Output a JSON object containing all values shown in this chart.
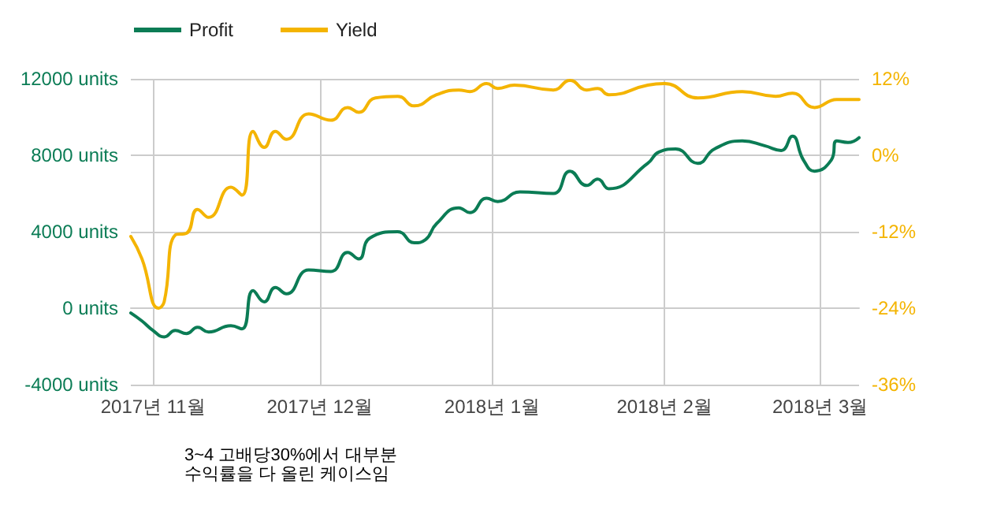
{
  "chart_data": {
    "type": "line",
    "legend": "top left",
    "grid": true,
    "marker": "none",
    "line_style": "solid",
    "xlim": [
      "2017-10-28",
      "2018-03-08"
    ],
    "xticks": [
      {
        "value": "2017-11-01",
        "label": "2017년 11월"
      },
      {
        "value": "2017-12-01",
        "label": "2017년 12월"
      },
      {
        "value": "2018-01-01",
        "label": "2018년 1월"
      },
      {
        "value": "2018-02-01",
        "label": "2018년 2월"
      },
      {
        "value": "2018-03-01",
        "label": "2018년 3월"
      }
    ],
    "ylim": [
      -4000,
      12000
    ],
    "yticks": [
      {
        "value": -4000,
        "label": "-4000 units"
      },
      {
        "value": 0,
        "label": "0 units"
      },
      {
        "value": 4000,
        "label": "4000 units"
      },
      {
        "value": 8000,
        "label": "8000 units"
      },
      {
        "value": 12000,
        "label": "12000 units"
      }
    ],
    "y2lim": [
      -36,
      12
    ],
    "y2ticks": [
      {
        "value": -36,
        "label": "-36%"
      },
      {
        "value": -24,
        "label": "-24%"
      },
      {
        "value": -12,
        "label": "-12%"
      },
      {
        "value": 0,
        "label": "0%"
      },
      {
        "value": 12,
        "label": "12%"
      }
    ],
    "annotations": [
      "3~4 고배당30%에서 대부분\n수익률을 다 올린 케이스임"
    ],
    "series": [
      {
        "name": "Profit",
        "color": "#0b7c55",
        "x": [
          "2017-10-28",
          "2017-10-30",
          "2017-11-01",
          "2017-11-03",
          "2017-11-05",
          "2017-11-07",
          "2017-11-09",
          "2017-11-11",
          "2017-11-15",
          "2017-11-17",
          "2017-11-19",
          "2017-11-21",
          "2017-11-23",
          "2017-11-25",
          "2017-11-29",
          "2017-12-03",
          "2017-12-06",
          "2017-12-08",
          "2017-12-10",
          "2017-12-15",
          "2017-12-18",
          "2017-12-20",
          "2017-12-22",
          "2017-12-26",
          "2017-12-28",
          "2017-12-31",
          "2018-01-02",
          "2018-01-06",
          "2018-01-12",
          "2018-01-15",
          "2018-01-18",
          "2018-01-20",
          "2018-01-22",
          "2018-01-29",
          "2018-01-31",
          "2018-02-03",
          "2018-02-07",
          "2018-02-10",
          "2018-02-15",
          "2018-02-19",
          "2018-02-22",
          "2018-02-24",
          "2018-02-26",
          "2018-02-28",
          "2018-03-03",
          "2018-03-04",
          "2018-03-06",
          "2018-03-08"
        ],
        "values": [
          -250,
          -670,
          -1170,
          -1500,
          -1170,
          -1330,
          -1000,
          -1250,
          -920,
          -1080,
          920,
          330,
          1080,
          750,
          2000,
          1920,
          2920,
          2580,
          3670,
          4000,
          3420,
          3580,
          4420,
          5250,
          5000,
          5750,
          5580,
          6080,
          6000,
          7170,
          6420,
          6750,
          6250,
          7580,
          8170,
          8330,
          7580,
          8330,
          8750,
          8500,
          8250,
          9000,
          7750,
          7170,
          7750,
          8750,
          8670,
          8920
        ]
      },
      {
        "name": "Yield",
        "color": "#f4b400",
        "axis": "y2",
        "x": [
          "2017-10-28",
          "2017-10-30",
          "2017-11-02",
          "2017-11-03",
          "2017-11-05",
          "2017-11-07",
          "2017-11-09",
          "2017-11-11",
          "2017-11-15",
          "2017-11-17",
          "2017-11-19",
          "2017-11-21",
          "2017-11-23",
          "2017-11-25",
          "2017-11-29",
          "2017-12-03",
          "2017-12-06",
          "2017-12-08",
          "2017-12-11",
          "2017-12-15",
          "2017-12-18",
          "2017-12-22",
          "2017-12-26",
          "2017-12-28",
          "2017-12-31",
          "2018-01-02",
          "2018-01-05",
          "2018-01-12",
          "2018-01-15",
          "2018-01-18",
          "2018-01-20",
          "2018-01-22",
          "2018-01-29",
          "2018-02-01",
          "2018-02-07",
          "2018-02-15",
          "2018-02-21",
          "2018-02-24",
          "2018-02-28",
          "2018-03-04",
          "2018-03-08"
        ],
        "values": [
          -12.75,
          -16.25,
          -24,
          -23,
          -12.5,
          -12.25,
          -8.5,
          -9.75,
          -5,
          -6.25,
          3.75,
          1.25,
          3.75,
          2.5,
          6.5,
          5.5,
          7.5,
          6.75,
          9,
          9.25,
          7.75,
          9.5,
          10.25,
          10,
          11.25,
          10.5,
          11,
          10.25,
          11.75,
          10.25,
          10.5,
          9.5,
          11,
          11.25,
          9,
          10,
          9.25,
          9.75,
          7.5,
          8.75,
          8.75
        ]
      }
    ]
  }
}
